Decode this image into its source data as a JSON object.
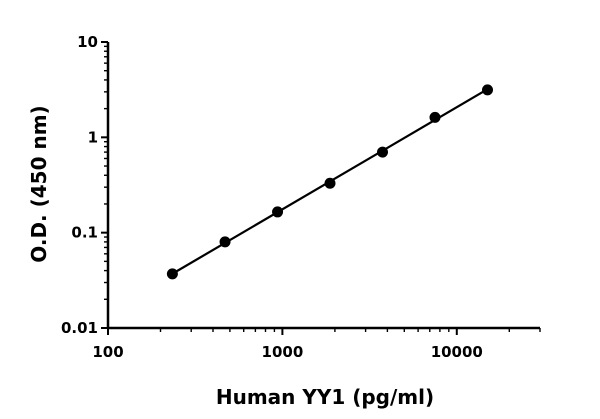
{
  "chart_data": {
    "type": "scatter",
    "xlabel": "Human YY1 (pg/ml)",
    "ylabel": "O.D. (450 nm)",
    "x_scale": "log",
    "y_scale": "log",
    "xlim": [
      100,
      30000
    ],
    "ylim": [
      0.01,
      10
    ],
    "x_ticks": [
      "100",
      "1000",
      "10000"
    ],
    "y_ticks": [
      "0.01",
      "0.1",
      "1",
      "10"
    ],
    "grid": false,
    "series": [
      {
        "x": [
          234,
          469,
          938,
          1875,
          3750,
          7500,
          15000
        ],
        "y": [
          0.037,
          0.08,
          0.165,
          0.33,
          0.7,
          1.62,
          3.15
        ],
        "marker": "circle",
        "fit": "log-log linear",
        "color": "#000000"
      }
    ]
  }
}
